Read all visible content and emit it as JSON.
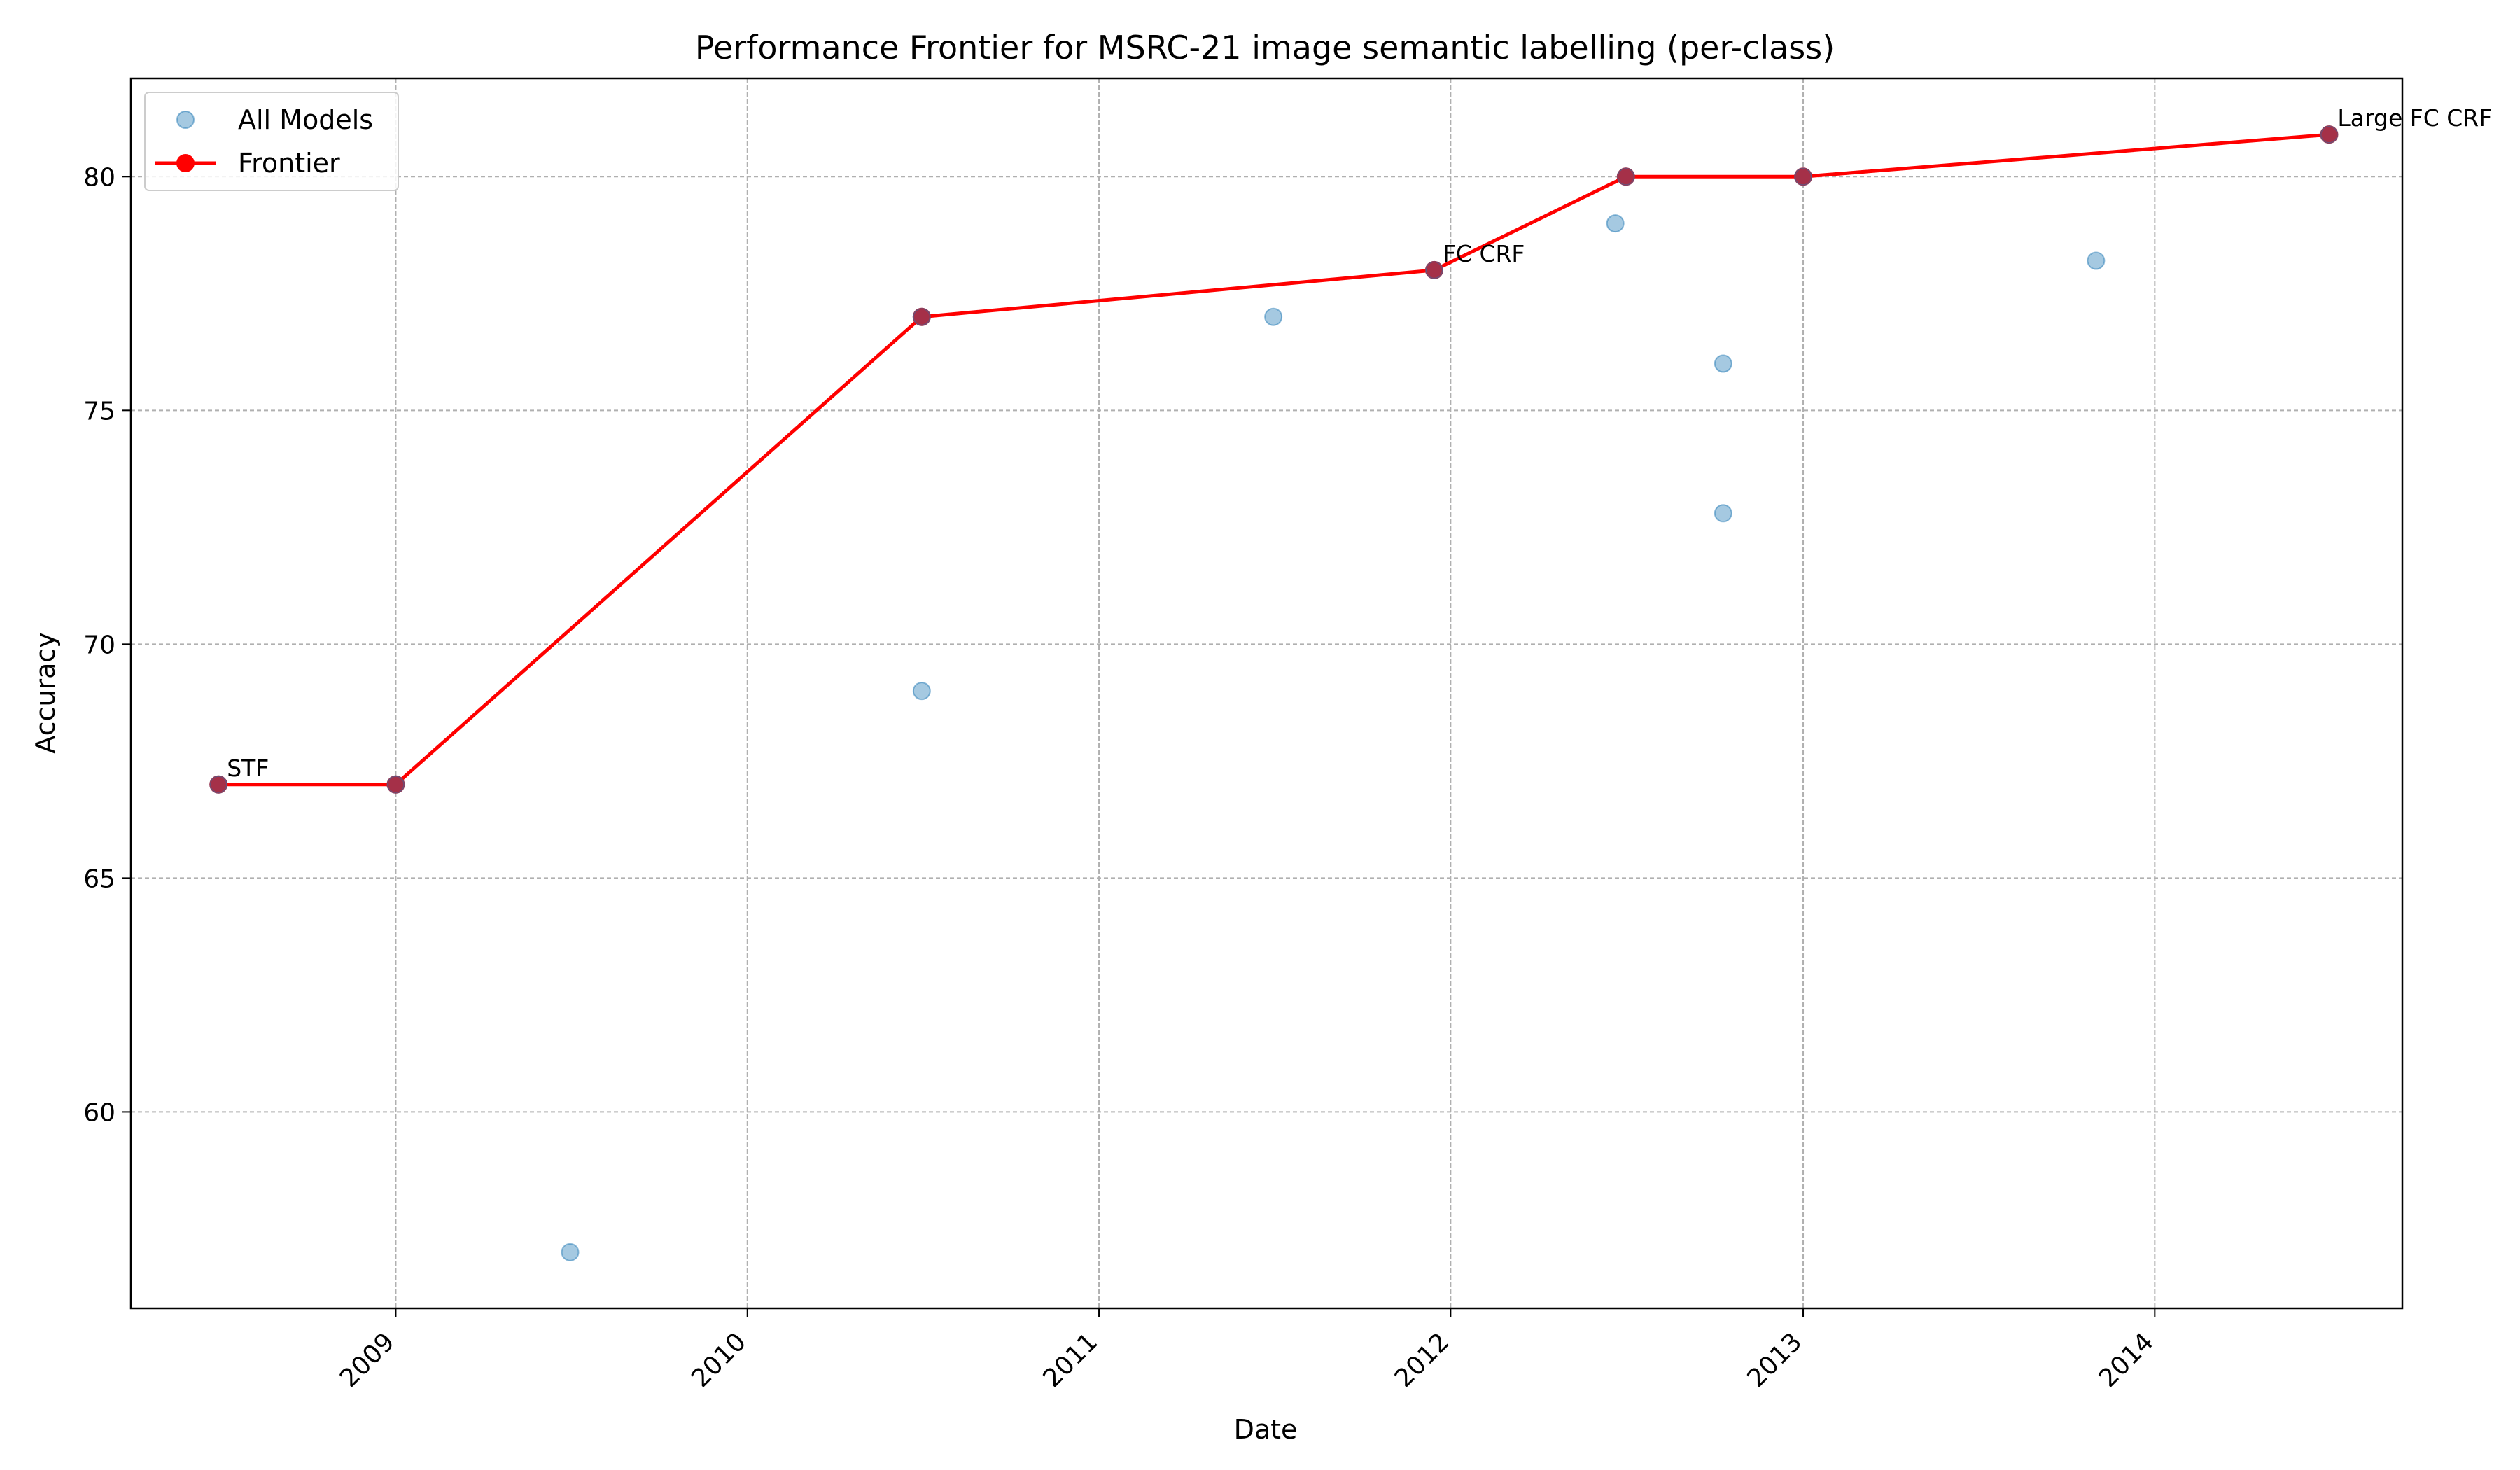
{
  "chart_data": {
    "type": "scatter",
    "title": "Performance Frontier for MSRC-21 image semantic labelling (per-class)",
    "xlabel": "Date",
    "ylabel": "Accuracy",
    "xlim": [
      "2008-04-01",
      "2014-09-15"
    ],
    "ylim": [
      55.8,
      82.1
    ],
    "x_ticks": [
      "2009",
      "2010",
      "2011",
      "2012",
      "2013",
      "2014"
    ],
    "y_ticks": [
      60,
      65,
      70,
      75,
      80
    ],
    "grid": true,
    "legend_placement": "top-left",
    "series": [
      {
        "name": "All Models",
        "kind": "scatter",
        "color": "#1f77b4",
        "points": [
          {
            "x": "2008-07-01",
            "y": 67
          },
          {
            "x": "2009-01-01",
            "y": 67
          },
          {
            "x": "2009-07-01",
            "y": 57
          },
          {
            "x": "2010-07-01",
            "y": 69
          },
          {
            "x": "2010-07-01",
            "y": 77
          },
          {
            "x": "2011-07-01",
            "y": 77
          },
          {
            "x": "2011-12-15",
            "y": 78
          },
          {
            "x": "2012-06-20",
            "y": 79
          },
          {
            "x": "2012-07-01",
            "y": 80
          },
          {
            "x": "2012-10-10",
            "y": 76
          },
          {
            "x": "2012-10-10",
            "y": 72.8
          },
          {
            "x": "2013-01-01",
            "y": 80
          },
          {
            "x": "2013-11-01",
            "y": 78.2
          },
          {
            "x": "2014-07-01",
            "y": 80.9
          }
        ]
      },
      {
        "name": "Frontier",
        "kind": "line",
        "color": "#ff0000",
        "points": [
          {
            "x": "2008-07-01",
            "y": 67
          },
          {
            "x": "2009-01-01",
            "y": 67
          },
          {
            "x": "2010-07-01",
            "y": 77
          },
          {
            "x": "2011-12-15",
            "y": 78
          },
          {
            "x": "2012-07-01",
            "y": 80
          },
          {
            "x": "2013-01-01",
            "y": 80
          },
          {
            "x": "2014-07-01",
            "y": 80.9
          }
        ]
      }
    ],
    "annotations": [
      {
        "text": "STF",
        "x": "2008-07-01",
        "y": 67
      },
      {
        "text": "FC CRF",
        "x": "2011-12-15",
        "y": 78
      },
      {
        "text": "Large FC CRF",
        "x": "2014-07-01",
        "y": 80.9
      }
    ]
  }
}
